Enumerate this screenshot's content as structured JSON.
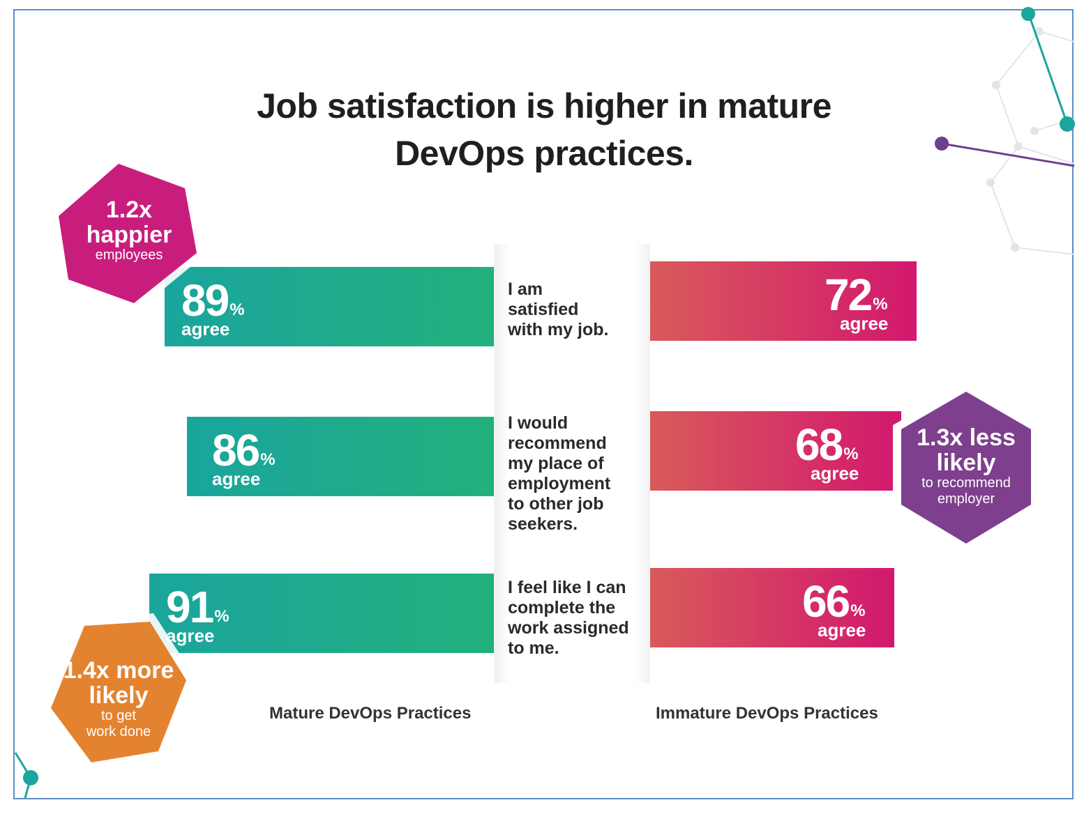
{
  "title": "Job satisfaction is higher in mature DevOps practices.",
  "chart_data": {
    "type": "bar",
    "categories": [
      "I am satisfied with my job.",
      "I would recommend my place of employment to other job seekers.",
      "I feel like I can complete the work assigned to me."
    ],
    "series": [
      {
        "name": "Mature DevOps Practices",
        "values": [
          89,
          86,
          91
        ],
        "color": "#1fab8a"
      },
      {
        "name": "Immature DevOps Practices",
        "values": [
          72,
          68,
          66
        ],
        "color": "#d8365f"
      }
    ],
    "unit": "%",
    "value_suffix": "agree",
    "xlim": [
      0,
      100
    ]
  },
  "labels": {
    "mature": "Mature DevOps Practices",
    "immature": "Immature DevOps Practices",
    "agree": "agree",
    "percent": "%"
  },
  "statements": [
    [
      "I am",
      "satisfied",
      "with my job."
    ],
    [
      "I would",
      "recommend",
      "my place of",
      "employment",
      "to other job",
      "seekers."
    ],
    [
      "I feel like I can",
      "complete the",
      "work assigned",
      "to me."
    ]
  ],
  "badges": {
    "happier": {
      "big1": "1.2x",
      "big2": "happier",
      "small": "employees",
      "color": "#c91d7d"
    },
    "recommend": {
      "big1": "1.3x less",
      "big2": "likely",
      "small1": "to recommend",
      "small2": "employer",
      "color": "#7d3f8e"
    },
    "workdone": {
      "big1": "1.4x more",
      "big2": "likely",
      "small1": "to get",
      "small2": "work done",
      "color": "#e4832f"
    }
  },
  "colors": {
    "teal": "#1fab8a",
    "pink": "#d2186e",
    "border": "#5b8ec9"
  }
}
